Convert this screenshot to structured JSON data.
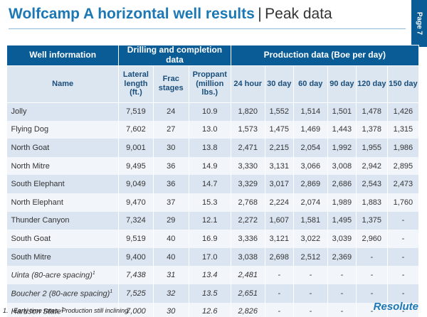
{
  "header": {
    "title": "Wolfcamp A horizontal well results",
    "separator": "|",
    "subtitle": "Peak data",
    "page_label": "Page 7"
  },
  "table": {
    "groups": {
      "well_info": "Well information",
      "drilling": "Drilling and completion data",
      "production": "Production data (Boe per day)"
    },
    "columns": {
      "name": "Name",
      "lateral": "Lateral length (ft.)",
      "frac": "Frac stages",
      "proppant": "Proppant (million lbs.)",
      "h24": "24 hour",
      "d30": "30 day",
      "d60": "60 day",
      "d90": "90 day",
      "d120": "120 day",
      "d150": "150 day"
    },
    "rows": [
      [
        "Jolly",
        "7,519",
        "24",
        "10.9",
        "1,820",
        "1,552",
        "1,514",
        "1,501",
        "1,478",
        "1,426"
      ],
      [
        "Flying Dog",
        "7,602",
        "27",
        "13.0",
        "1,573",
        "1,475",
        "1,469",
        "1,443",
        "1,378",
        "1,315"
      ],
      [
        "North Goat",
        "9,001",
        "30",
        "13.8",
        "2,471",
        "2,215",
        "2,054",
        "1,992",
        "1,955",
        "1,986"
      ],
      [
        "North Mitre",
        "9,495",
        "36",
        "14.9",
        "3,330",
        "3,131",
        "3,066",
        "3,008",
        "2,942",
        "2,895"
      ],
      [
        "South Elephant",
        "9,049",
        "36",
        "14.7",
        "3,329",
        "3,017",
        "2,869",
        "2,686",
        "2,543",
        "2,473"
      ],
      [
        "North Elephant",
        "9,470",
        "37",
        "15.3",
        "2,768",
        "2,224",
        "2,074",
        "1,989",
        "1,883",
        "1,760"
      ],
      [
        "Thunder Canyon",
        "7,324",
        "29",
        "12.1",
        "2,272",
        "1,607",
        "1,581",
        "1,495",
        "1,375",
        "-"
      ],
      [
        "South Goat",
        "9,519",
        "40",
        "16.9",
        "3,336",
        "3,121",
        "3,022",
        "3,039",
        "2,960",
        "-"
      ],
      [
        "South Mitre",
        "9,400",
        "40",
        "17.0",
        "3,038",
        "2,698",
        "2,512",
        "2,369",
        "-",
        "-"
      ],
      [
        "Uinta (80-acre spacing)",
        "7,438",
        "31",
        "13.4",
        "2,481",
        "-",
        "-",
        "-",
        "-",
        "-"
      ],
      [
        "Boucher 2 (80-acre spacing)",
        "7,525",
        "32",
        "13.5",
        "2,651",
        "-",
        "-",
        "-",
        "-",
        "-"
      ],
      [
        "Harrison State",
        "7,000",
        "30",
        "12.6",
        "2,826",
        "-",
        "-",
        "-",
        "-",
        "-"
      ]
    ],
    "footnote_marker": "1"
  },
  "footnote": {
    "number": "1.",
    "text": "Early time rates. Production still inclining."
  },
  "logo": "Resolute"
}
